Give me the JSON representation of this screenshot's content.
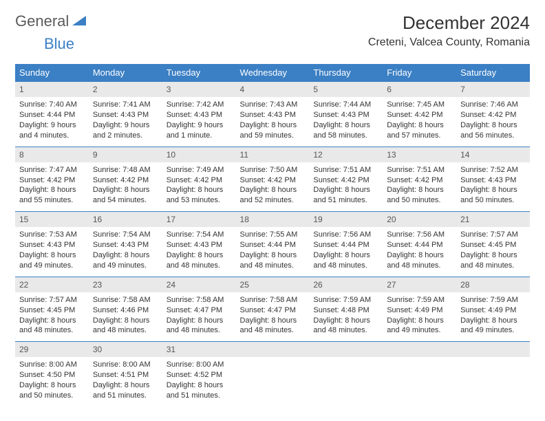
{
  "logo": {
    "text1": "General",
    "text2": "Blue",
    "tri_color": "#3b7fc4"
  },
  "title": "December 2024",
  "location": "Creteni, Valcea County, Romania",
  "weekday_header_bg": "#3b7fc4",
  "weekday_header_fg": "#ffffff",
  "daynum_bg": "#e9e9e9",
  "row_border_color": "#3b7fc4",
  "weekdays": [
    "Sunday",
    "Monday",
    "Tuesday",
    "Wednesday",
    "Thursday",
    "Friday",
    "Saturday"
  ],
  "weeks": [
    [
      {
        "n": "1",
        "sr": "Sunrise: 7:40 AM",
        "ss": "Sunset: 4:44 PM",
        "dl": "Daylight: 9 hours and 4 minutes."
      },
      {
        "n": "2",
        "sr": "Sunrise: 7:41 AM",
        "ss": "Sunset: 4:43 PM",
        "dl": "Daylight: 9 hours and 2 minutes."
      },
      {
        "n": "3",
        "sr": "Sunrise: 7:42 AM",
        "ss": "Sunset: 4:43 PM",
        "dl": "Daylight: 9 hours and 1 minute."
      },
      {
        "n": "4",
        "sr": "Sunrise: 7:43 AM",
        "ss": "Sunset: 4:43 PM",
        "dl": "Daylight: 8 hours and 59 minutes."
      },
      {
        "n": "5",
        "sr": "Sunrise: 7:44 AM",
        "ss": "Sunset: 4:43 PM",
        "dl": "Daylight: 8 hours and 58 minutes."
      },
      {
        "n": "6",
        "sr": "Sunrise: 7:45 AM",
        "ss": "Sunset: 4:42 PM",
        "dl": "Daylight: 8 hours and 57 minutes."
      },
      {
        "n": "7",
        "sr": "Sunrise: 7:46 AM",
        "ss": "Sunset: 4:42 PM",
        "dl": "Daylight: 8 hours and 56 minutes."
      }
    ],
    [
      {
        "n": "8",
        "sr": "Sunrise: 7:47 AM",
        "ss": "Sunset: 4:42 PM",
        "dl": "Daylight: 8 hours and 55 minutes."
      },
      {
        "n": "9",
        "sr": "Sunrise: 7:48 AM",
        "ss": "Sunset: 4:42 PM",
        "dl": "Daylight: 8 hours and 54 minutes."
      },
      {
        "n": "10",
        "sr": "Sunrise: 7:49 AM",
        "ss": "Sunset: 4:42 PM",
        "dl": "Daylight: 8 hours and 53 minutes."
      },
      {
        "n": "11",
        "sr": "Sunrise: 7:50 AM",
        "ss": "Sunset: 4:42 PM",
        "dl": "Daylight: 8 hours and 52 minutes."
      },
      {
        "n": "12",
        "sr": "Sunrise: 7:51 AM",
        "ss": "Sunset: 4:42 PM",
        "dl": "Daylight: 8 hours and 51 minutes."
      },
      {
        "n": "13",
        "sr": "Sunrise: 7:51 AM",
        "ss": "Sunset: 4:42 PM",
        "dl": "Daylight: 8 hours and 50 minutes."
      },
      {
        "n": "14",
        "sr": "Sunrise: 7:52 AM",
        "ss": "Sunset: 4:43 PM",
        "dl": "Daylight: 8 hours and 50 minutes."
      }
    ],
    [
      {
        "n": "15",
        "sr": "Sunrise: 7:53 AM",
        "ss": "Sunset: 4:43 PM",
        "dl": "Daylight: 8 hours and 49 minutes."
      },
      {
        "n": "16",
        "sr": "Sunrise: 7:54 AM",
        "ss": "Sunset: 4:43 PM",
        "dl": "Daylight: 8 hours and 49 minutes."
      },
      {
        "n": "17",
        "sr": "Sunrise: 7:54 AM",
        "ss": "Sunset: 4:43 PM",
        "dl": "Daylight: 8 hours and 48 minutes."
      },
      {
        "n": "18",
        "sr": "Sunrise: 7:55 AM",
        "ss": "Sunset: 4:44 PM",
        "dl": "Daylight: 8 hours and 48 minutes."
      },
      {
        "n": "19",
        "sr": "Sunrise: 7:56 AM",
        "ss": "Sunset: 4:44 PM",
        "dl": "Daylight: 8 hours and 48 minutes."
      },
      {
        "n": "20",
        "sr": "Sunrise: 7:56 AM",
        "ss": "Sunset: 4:44 PM",
        "dl": "Daylight: 8 hours and 48 minutes."
      },
      {
        "n": "21",
        "sr": "Sunrise: 7:57 AM",
        "ss": "Sunset: 4:45 PM",
        "dl": "Daylight: 8 hours and 48 minutes."
      }
    ],
    [
      {
        "n": "22",
        "sr": "Sunrise: 7:57 AM",
        "ss": "Sunset: 4:45 PM",
        "dl": "Daylight: 8 hours and 48 minutes."
      },
      {
        "n": "23",
        "sr": "Sunrise: 7:58 AM",
        "ss": "Sunset: 4:46 PM",
        "dl": "Daylight: 8 hours and 48 minutes."
      },
      {
        "n": "24",
        "sr": "Sunrise: 7:58 AM",
        "ss": "Sunset: 4:47 PM",
        "dl": "Daylight: 8 hours and 48 minutes."
      },
      {
        "n": "25",
        "sr": "Sunrise: 7:58 AM",
        "ss": "Sunset: 4:47 PM",
        "dl": "Daylight: 8 hours and 48 minutes."
      },
      {
        "n": "26",
        "sr": "Sunrise: 7:59 AM",
        "ss": "Sunset: 4:48 PM",
        "dl": "Daylight: 8 hours and 48 minutes."
      },
      {
        "n": "27",
        "sr": "Sunrise: 7:59 AM",
        "ss": "Sunset: 4:49 PM",
        "dl": "Daylight: 8 hours and 49 minutes."
      },
      {
        "n": "28",
        "sr": "Sunrise: 7:59 AM",
        "ss": "Sunset: 4:49 PM",
        "dl": "Daylight: 8 hours and 49 minutes."
      }
    ],
    [
      {
        "n": "29",
        "sr": "Sunrise: 8:00 AM",
        "ss": "Sunset: 4:50 PM",
        "dl": "Daylight: 8 hours and 50 minutes."
      },
      {
        "n": "30",
        "sr": "Sunrise: 8:00 AM",
        "ss": "Sunset: 4:51 PM",
        "dl": "Daylight: 8 hours and 51 minutes."
      },
      {
        "n": "31",
        "sr": "Sunrise: 8:00 AM",
        "ss": "Sunset: 4:52 PM",
        "dl": "Daylight: 8 hours and 51 minutes."
      },
      {
        "empty": true
      },
      {
        "empty": true
      },
      {
        "empty": true
      },
      {
        "empty": true
      }
    ]
  ]
}
